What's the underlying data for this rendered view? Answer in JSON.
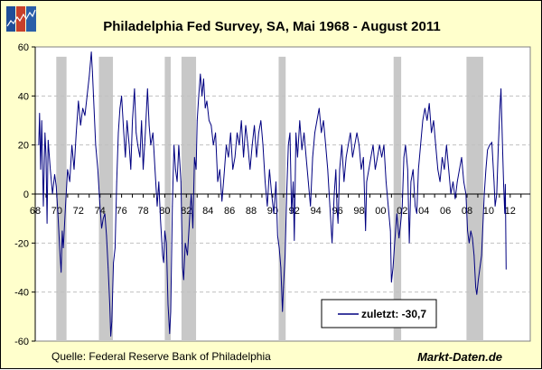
{
  "title": "Philadelphia Fed Survey, SA, Mai 1968 - August 2011",
  "source": "Quelle: Federal Reserve Bank of Philadelphia",
  "brand": "Markt-Daten.de",
  "logo_icon": "rising-chart-logo-icon",
  "colors": {
    "background": "#FFFFCC",
    "plot": "#FFFFFF",
    "line": "#000080",
    "recession": "#C8C8C8",
    "grid": "#C0C0C0"
  },
  "chart_data": {
    "type": "line",
    "title": "Philadelphia Fed Survey, SA, Mai 1968 - August 2011",
    "xlim": [
      1968,
      2014
    ],
    "ylim": [
      -60,
      60
    ],
    "grid": "horizontal dashed",
    "y_ticks": [
      "60",
      "40",
      "20",
      "0",
      "-20",
      "-40",
      "-60"
    ],
    "x_ticks": [
      "68",
      "70",
      "72",
      "74",
      "76",
      "78",
      "80",
      "82",
      "84",
      "86",
      "88",
      "90",
      "92",
      "94",
      "96",
      "98",
      "00",
      "02",
      "04",
      "06",
      "08",
      "10",
      "12"
    ],
    "legend": {
      "label": "zuletzt: -30,7",
      "placement": "bottom-right"
    },
    "recessions": [
      [
        1969.95,
        1970.9
      ],
      [
        1973.9,
        1975.2
      ],
      [
        1980.0,
        1980.55
      ],
      [
        1981.55,
        1982.9
      ],
      [
        1990.55,
        1991.2
      ],
      [
        2001.2,
        2001.9
      ],
      [
        2007.95,
        2009.5
      ]
    ],
    "series": [
      {
        "points": [
          [
            1968.33,
            20
          ],
          [
            1968.4,
            33
          ],
          [
            1968.5,
            10
          ],
          [
            1968.6,
            30
          ],
          [
            1968.75,
            -5
          ],
          [
            1968.9,
            25
          ],
          [
            1969.0,
            15
          ],
          [
            1969.1,
            -12
          ],
          [
            1969.2,
            22
          ],
          [
            1969.4,
            10
          ],
          [
            1969.6,
            0
          ],
          [
            1969.8,
            8
          ],
          [
            1969.95,
            3
          ],
          [
            1970.1,
            -8
          ],
          [
            1970.3,
            -25
          ],
          [
            1970.4,
            -32
          ],
          [
            1970.5,
            -15
          ],
          [
            1970.6,
            -22
          ],
          [
            1970.8,
            -5
          ],
          [
            1971.0,
            10
          ],
          [
            1971.2,
            5
          ],
          [
            1971.4,
            20
          ],
          [
            1971.6,
            10
          ],
          [
            1971.8,
            25
          ],
          [
            1972.0,
            38
          ],
          [
            1972.2,
            28
          ],
          [
            1972.4,
            35
          ],
          [
            1972.6,
            32
          ],
          [
            1972.8,
            40
          ],
          [
            1973.0,
            48
          ],
          [
            1973.2,
            58
          ],
          [
            1973.3,
            50
          ],
          [
            1973.45,
            35
          ],
          [
            1973.6,
            20
          ],
          [
            1973.8,
            10
          ],
          [
            1974.0,
            -5
          ],
          [
            1974.15,
            -14
          ],
          [
            1974.3,
            -10
          ],
          [
            1974.45,
            -8
          ],
          [
            1974.6,
            -17
          ],
          [
            1974.75,
            -30
          ],
          [
            1974.9,
            -45
          ],
          [
            1975.0,
            -58
          ],
          [
            1975.1,
            -52
          ],
          [
            1975.25,
            -28
          ],
          [
            1975.4,
            -22
          ],
          [
            1975.55,
            5
          ],
          [
            1975.7,
            25
          ],
          [
            1975.85,
            35
          ],
          [
            1976.0,
            40
          ],
          [
            1976.2,
            25
          ],
          [
            1976.35,
            15
          ],
          [
            1976.5,
            30
          ],
          [
            1976.7,
            20
          ],
          [
            1976.85,
            10
          ],
          [
            1977.0,
            30
          ],
          [
            1977.2,
            43
          ],
          [
            1977.35,
            25
          ],
          [
            1977.5,
            20
          ],
          [
            1977.7,
            15
          ],
          [
            1977.85,
            30
          ],
          [
            1978.0,
            10
          ],
          [
            1978.2,
            25
          ],
          [
            1978.4,
            43
          ],
          [
            1978.55,
            28
          ],
          [
            1978.7,
            20
          ],
          [
            1978.9,
            25
          ],
          [
            1979.1,
            10
          ],
          [
            1979.3,
            -5
          ],
          [
            1979.45,
            5
          ],
          [
            1979.6,
            -10
          ],
          [
            1979.8,
            -25
          ],
          [
            1979.9,
            -28
          ],
          [
            1980.0,
            -15
          ],
          [
            1980.15,
            -20
          ],
          [
            1980.3,
            -45
          ],
          [
            1980.45,
            -57
          ],
          [
            1980.55,
            -48
          ],
          [
            1980.7,
            -5
          ],
          [
            1980.85,
            20
          ],
          [
            1981.0,
            10
          ],
          [
            1981.15,
            5
          ],
          [
            1981.3,
            20
          ],
          [
            1981.5,
            5
          ],
          [
            1981.65,
            -30
          ],
          [
            1981.75,
            -35
          ],
          [
            1981.9,
            -20
          ],
          [
            1982.1,
            -25
          ],
          [
            1982.3,
            -10
          ],
          [
            1982.45,
            0
          ],
          [
            1982.6,
            -14
          ],
          [
            1982.75,
            15
          ],
          [
            1982.9,
            10
          ],
          [
            1983.0,
            30
          ],
          [
            1983.15,
            40
          ],
          [
            1983.3,
            49
          ],
          [
            1983.45,
            40
          ],
          [
            1983.6,
            47
          ],
          [
            1983.75,
            35
          ],
          [
            1983.9,
            38
          ],
          [
            1984.1,
            30
          ],
          [
            1984.3,
            28
          ],
          [
            1984.5,
            20
          ],
          [
            1984.7,
            25
          ],
          [
            1984.9,
            5
          ],
          [
            1985.1,
            10
          ],
          [
            1985.3,
            -3
          ],
          [
            1985.5,
            8
          ],
          [
            1985.7,
            20
          ],
          [
            1985.9,
            15
          ],
          [
            1986.1,
            25
          ],
          [
            1986.3,
            10
          ],
          [
            1986.5,
            15
          ],
          [
            1986.7,
            25
          ],
          [
            1986.9,
            20
          ],
          [
            1987.1,
            30
          ],
          [
            1987.3,
            15
          ],
          [
            1987.5,
            28
          ],
          [
            1987.7,
            20
          ],
          [
            1987.9,
            10
          ],
          [
            1988.1,
            20
          ],
          [
            1988.3,
            28
          ],
          [
            1988.5,
            15
          ],
          [
            1988.7,
            25
          ],
          [
            1988.9,
            30
          ],
          [
            1989.1,
            20
          ],
          [
            1989.3,
            5
          ],
          [
            1989.5,
            -5
          ],
          [
            1989.7,
            10
          ],
          [
            1989.9,
            0
          ],
          [
            1990.1,
            -8
          ],
          [
            1990.3,
            5
          ],
          [
            1990.45,
            -17
          ],
          [
            1990.6,
            -22
          ],
          [
            1990.75,
            -30
          ],
          [
            1990.9,
            -48
          ],
          [
            1991.0,
            -38
          ],
          [
            1991.15,
            -25
          ],
          [
            1991.3,
            0
          ],
          [
            1991.45,
            20
          ],
          [
            1991.6,
            25
          ],
          [
            1991.75,
            -8
          ],
          [
            1991.9,
            5
          ],
          [
            1992.0,
            -19
          ],
          [
            1992.15,
            25
          ],
          [
            1992.3,
            15
          ],
          [
            1992.5,
            30
          ],
          [
            1992.7,
            18
          ],
          [
            1992.9,
            25
          ],
          [
            1993.1,
            15
          ],
          [
            1993.3,
            5
          ],
          [
            1993.5,
            -5
          ],
          [
            1993.7,
            15
          ],
          [
            1993.9,
            25
          ],
          [
            1994.1,
            30
          ],
          [
            1994.3,
            35
          ],
          [
            1994.5,
            25
          ],
          [
            1994.7,
            30
          ],
          [
            1994.9,
            20
          ],
          [
            1995.1,
            10
          ],
          [
            1995.3,
            -5
          ],
          [
            1995.5,
            -20
          ],
          [
            1995.7,
            0
          ],
          [
            1995.85,
            10
          ],
          [
            1995.95,
            -5
          ],
          [
            1996.05,
            -12
          ],
          [
            1996.2,
            10
          ],
          [
            1996.4,
            20
          ],
          [
            1996.6,
            5
          ],
          [
            1996.8,
            15
          ],
          [
            1997.0,
            20
          ],
          [
            1997.2,
            25
          ],
          [
            1997.4,
            15
          ],
          [
            1997.6,
            20
          ],
          [
            1997.8,
            25
          ],
          [
            1998.0,
            20
          ],
          [
            1998.2,
            10
          ],
          [
            1998.4,
            15
          ],
          [
            1998.6,
            -15
          ],
          [
            1998.7,
            5
          ],
          [
            1998.9,
            10
          ],
          [
            1999.1,
            15
          ],
          [
            1999.3,
            20
          ],
          [
            1999.5,
            10
          ],
          [
            1999.7,
            15
          ],
          [
            1999.9,
            20
          ],
          [
            2000.1,
            15
          ],
          [
            2000.3,
            20
          ],
          [
            2000.5,
            5
          ],
          [
            2000.7,
            -5
          ],
          [
            2000.9,
            -15
          ],
          [
            2001.0,
            -36
          ],
          [
            2001.15,
            -30
          ],
          [
            2001.3,
            -20
          ],
          [
            2001.5,
            -8
          ],
          [
            2001.7,
            -18
          ],
          [
            2001.85,
            -12
          ],
          [
            2002.0,
            -5
          ],
          [
            2002.15,
            15
          ],
          [
            2002.3,
            20
          ],
          [
            2002.5,
            10
          ],
          [
            2002.65,
            -20
          ],
          [
            2002.8,
            5
          ],
          [
            2003.0,
            10
          ],
          [
            2003.2,
            -5
          ],
          [
            2003.35,
            -8
          ],
          [
            2003.5,
            10
          ],
          [
            2003.7,
            20
          ],
          [
            2003.9,
            30
          ],
          [
            2004.1,
            35
          ],
          [
            2004.3,
            30
          ],
          [
            2004.5,
            37
          ],
          [
            2004.7,
            25
          ],
          [
            2004.9,
            30
          ],
          [
            2005.1,
            20
          ],
          [
            2005.3,
            10
          ],
          [
            2005.5,
            5
          ],
          [
            2005.7,
            15
          ],
          [
            2005.9,
            10
          ],
          [
            2006.1,
            20
          ],
          [
            2006.3,
            10
          ],
          [
            2006.5,
            0
          ],
          [
            2006.7,
            5
          ],
          [
            2006.9,
            -2
          ],
          [
            2007.1,
            5
          ],
          [
            2007.3,
            10
          ],
          [
            2007.5,
            15
          ],
          [
            2007.7,
            5
          ],
          [
            2007.9,
            0
          ],
          [
            2008.05,
            -15
          ],
          [
            2008.2,
            -20
          ],
          [
            2008.35,
            -15
          ],
          [
            2008.5,
            -18
          ],
          [
            2008.65,
            -25
          ],
          [
            2008.8,
            -38
          ],
          [
            2008.9,
            -41
          ],
          [
            2009.05,
            -35
          ],
          [
            2009.2,
            -30
          ],
          [
            2009.35,
            -25
          ],
          [
            2009.5,
            -10
          ],
          [
            2009.6,
            0
          ],
          [
            2009.75,
            10
          ],
          [
            2009.9,
            18
          ],
          [
            2010.1,
            20
          ],
          [
            2010.3,
            21
          ],
          [
            2010.5,
            5
          ],
          [
            2010.6,
            -5
          ],
          [
            2010.75,
            0
          ],
          [
            2010.9,
            20
          ],
          [
            2011.05,
            35
          ],
          [
            2011.15,
            43
          ],
          [
            2011.3,
            18
          ],
          [
            2011.4,
            3
          ],
          [
            2011.5,
            -8
          ],
          [
            2011.55,
            4
          ],
          [
            2011.62,
            -30.7
          ]
        ]
      }
    ]
  }
}
